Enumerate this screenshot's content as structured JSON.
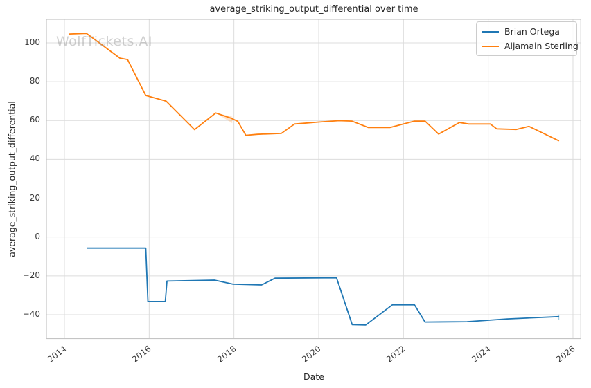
{
  "watermark": {
    "text": "WolfTickets.AI"
  },
  "chart_data": {
    "type": "line",
    "title": "average_striking_output_differential over time",
    "xlabel": "Date",
    "ylabel": "average_striking_output_differential",
    "xlim": [
      2013.575,
      2026.185
    ],
    "ylim": [
      -52.3,
      112.1
    ],
    "grid": true,
    "legend_position": "upper right",
    "background_color": "#ffffff",
    "grid_color": "#dcdcdc",
    "spine_color": "#c4c4c4",
    "xticks": [
      {
        "value": 2014,
        "label": "2014"
      },
      {
        "value": 2016,
        "label": "2016"
      },
      {
        "value": 2018,
        "label": "2018"
      },
      {
        "value": 2020,
        "label": "2020"
      },
      {
        "value": 2022,
        "label": "2022"
      },
      {
        "value": 2024,
        "label": "2024"
      },
      {
        "value": 2026,
        "label": "2026"
      }
    ],
    "yticks": [
      {
        "value": 100,
        "label": "100"
      },
      {
        "value": 80,
        "label": "80"
      },
      {
        "value": 60,
        "label": "60"
      },
      {
        "value": 40,
        "label": "40"
      },
      {
        "value": 20,
        "label": "20"
      },
      {
        "value": 0,
        "label": "0"
      },
      {
        "value": -20,
        "label": "−20"
      },
      {
        "value": -40,
        "label": "−40"
      }
    ],
    "series": [
      {
        "name": "Brian Ortega",
        "color": "#1f77b4",
        "points": [
          [
            2014.54,
            -5.7
          ],
          [
            2015.92,
            -5.7
          ],
          [
            2015.97,
            -33.2
          ],
          [
            2016.38,
            -33.2
          ],
          [
            2016.42,
            -22.7
          ],
          [
            2017.54,
            -22.2
          ],
          [
            2017.98,
            -24.3
          ],
          [
            2018.65,
            -24.7
          ],
          [
            2018.97,
            -21.2
          ],
          [
            2020.42,
            -21.0
          ],
          [
            2020.79,
            -45.1
          ],
          [
            2021.11,
            -45.3
          ],
          [
            2021.74,
            -34.9
          ],
          [
            2022.26,
            -34.9
          ],
          [
            2022.51,
            -43.8
          ],
          [
            2023.5,
            -43.6
          ],
          [
            2024.45,
            -42.2
          ],
          [
            2025.66,
            -41.0
          ]
        ]
      },
      {
        "name": "Aljamain Sterling",
        "color": "#ff7f0e",
        "points": [
          [
            2014.12,
            104.6
          ],
          [
            2014.52,
            104.9
          ],
          [
            2015.31,
            92.1
          ],
          [
            2015.49,
            91.4
          ],
          [
            2015.92,
            72.9
          ],
          [
            2016.4,
            70.0
          ],
          [
            2017.07,
            55.3
          ],
          [
            2017.57,
            63.9
          ],
          [
            2017.92,
            61.3
          ],
          [
            2018.09,
            59.6
          ],
          [
            2018.28,
            52.4
          ],
          [
            2018.55,
            52.9
          ],
          [
            2019.12,
            53.4
          ],
          [
            2019.43,
            58.2
          ],
          [
            2020.0,
            59.2
          ],
          [
            2020.48,
            59.9
          ],
          [
            2020.78,
            59.7
          ],
          [
            2021.17,
            56.4
          ],
          [
            2021.68,
            56.4
          ],
          [
            2022.26,
            59.7
          ],
          [
            2022.51,
            59.7
          ],
          [
            2022.83,
            53.0
          ],
          [
            2023.32,
            59.0
          ],
          [
            2023.54,
            58.2
          ],
          [
            2024.05,
            58.2
          ],
          [
            2024.2,
            55.7
          ],
          [
            2024.66,
            55.4
          ],
          [
            2024.96,
            57.0
          ],
          [
            2025.66,
            49.6
          ]
        ]
      }
    ],
    "annotations": {
      "sterling_shaded_wedge": {
        "color": "#ff7f0e",
        "opacity": 0.22,
        "points": [
          [
            2017.57,
            63.9
          ],
          [
            2017.96,
            62.0
          ],
          [
            2017.96,
            58.6
          ]
        ]
      },
      "ortega_end_errorbar": {
        "color": "#9ecae1",
        "x": 2025.66,
        "y1": -39.9,
        "y2": -42.7
      }
    }
  }
}
